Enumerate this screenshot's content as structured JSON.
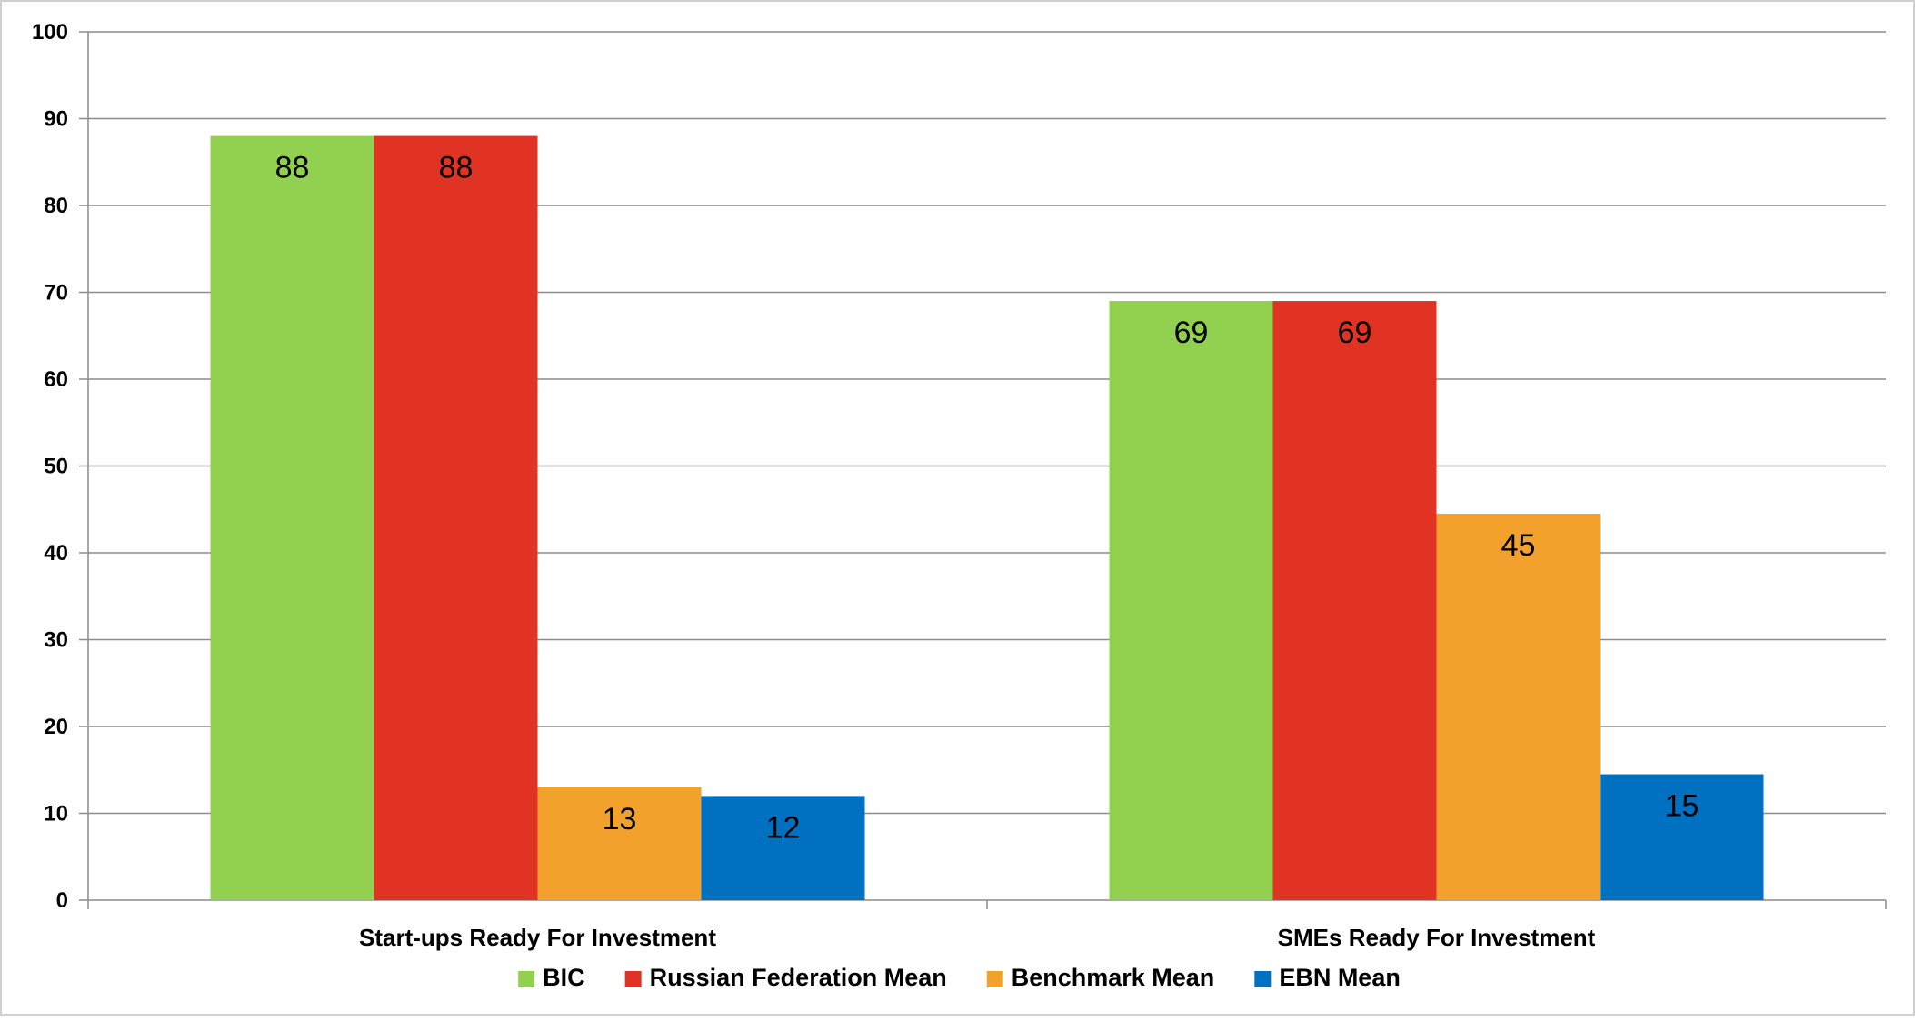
{
  "chart_data": {
    "type": "bar",
    "title": "",
    "xlabel": "",
    "ylabel": "",
    "categories": [
      "Start-ups Ready For Investment",
      "SMEs Ready For Investment"
    ],
    "series": [
      {
        "name": "BIC",
        "color": "#92d050",
        "values": [
          88,
          69
        ],
        "labels": [
          "88",
          "69"
        ]
      },
      {
        "name": "Russian Federation Mean",
        "color": "#e03323",
        "values": [
          88,
          69
        ],
        "labels": [
          "88",
          "69"
        ]
      },
      {
        "name": "Benchmark Mean",
        "color": "#f2a22c",
        "values": [
          13,
          44.5
        ],
        "labels": [
          "13",
          "45"
        ]
      },
      {
        "name": "EBN Mean",
        "color": "#0070c0",
        "values": [
          12,
          14.5
        ],
        "labels": [
          "12",
          "15"
        ]
      }
    ],
    "ylim": [
      0,
      100
    ],
    "yticks": [
      0,
      10,
      20,
      30,
      40,
      50,
      60,
      70,
      80,
      90,
      100
    ],
    "ytick_labels": [
      "0",
      "10",
      "20",
      "30",
      "40",
      "50",
      "60",
      "70",
      "80",
      "90",
      "100"
    ],
    "grid": true,
    "legend_position": "bottom"
  }
}
